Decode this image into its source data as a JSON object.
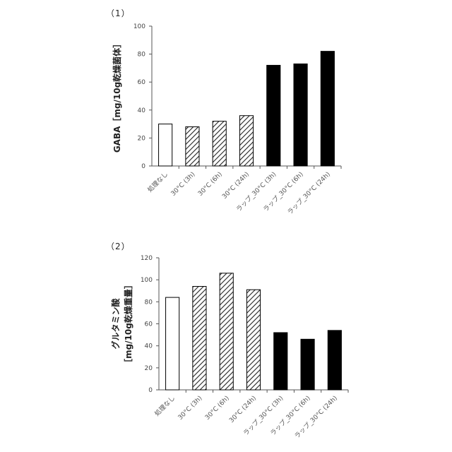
{
  "panels": {
    "p1": {
      "label": "（1）"
    },
    "p2": {
      "label": "（2）"
    }
  },
  "colors": {
    "axis": "#555555",
    "bar_stroke": "#000000",
    "white": "#ffffff",
    "black": "#000000",
    "hatch": "#333333"
  },
  "chart_data": [
    {
      "type": "bar",
      "title": "",
      "xlabel": "",
      "ylabel": "GABA［mg/10g乾燥菌体］",
      "ylim": [
        0,
        100
      ],
      "yticks": [
        0,
        20,
        40,
        60,
        80,
        100
      ],
      "categories": [
        "処理なし",
        "30°C (3h)",
        "30°C (6h)",
        "30°C (24h)",
        "ラップ_30°C (3h)",
        "ラップ_30°C (6h)",
        "ラップ_30°C (24h)"
      ],
      "values": [
        30,
        28,
        32,
        36,
        72,
        73,
        82
      ],
      "fills": [
        "white",
        "hatch",
        "hatch",
        "hatch",
        "black",
        "black",
        "black"
      ]
    },
    {
      "type": "bar",
      "title": "",
      "xlabel": "",
      "ylabel_lines": [
        "グルタミン酸",
        "［mg/10g乾燥重量］"
      ],
      "ylim": [
        0,
        120
      ],
      "yticks": [
        0,
        20,
        40,
        60,
        80,
        100,
        120
      ],
      "categories": [
        "処理なし",
        "30°C (3h)",
        "30°C (6h)",
        "30°C (24h)",
        "ラップ_30°C (3h)",
        "ラップ_30°C (6h)",
        "ラップ_30°C (24h)"
      ],
      "values": [
        84,
        94,
        106,
        91,
        52,
        46,
        54
      ],
      "fills": [
        "white",
        "hatch",
        "hatch",
        "hatch",
        "black",
        "black",
        "black"
      ]
    }
  ]
}
